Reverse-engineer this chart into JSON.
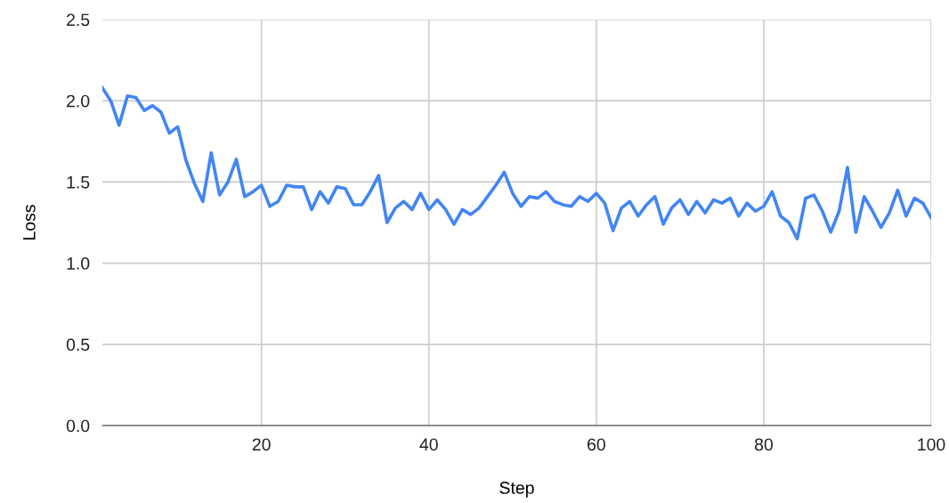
{
  "chart_data": {
    "type": "line",
    "xlabel": "Step",
    "ylabel": "Loss",
    "x": [
      1,
      2,
      3,
      4,
      5,
      6,
      7,
      8,
      9,
      10,
      11,
      12,
      13,
      14,
      15,
      16,
      17,
      18,
      19,
      20,
      21,
      22,
      23,
      24,
      25,
      26,
      27,
      28,
      29,
      30,
      31,
      32,
      33,
      34,
      35,
      36,
      37,
      38,
      39,
      40,
      41,
      42,
      43,
      44,
      45,
      46,
      47,
      48,
      49,
      50,
      51,
      52,
      53,
      54,
      55,
      56,
      57,
      58,
      59,
      60,
      61,
      62,
      63,
      64,
      65,
      66,
      67,
      68,
      69,
      70,
      71,
      72,
      73,
      74,
      75,
      76,
      77,
      78,
      79,
      80,
      81,
      82,
      83,
      84,
      85,
      86,
      87,
      88,
      89,
      90,
      91,
      92,
      93,
      94,
      95,
      96,
      97,
      98,
      99,
      100
    ],
    "series": [
      {
        "color": "#4285f4",
        "values": [
          2.08,
          2.0,
          1.85,
          2.03,
          2.02,
          1.94,
          1.97,
          1.93,
          1.8,
          1.84,
          1.63,
          1.49,
          1.38,
          1.68,
          1.42,
          1.5,
          1.64,
          1.41,
          1.44,
          1.48,
          1.35,
          1.38,
          1.48,
          1.47,
          1.47,
          1.33,
          1.44,
          1.37,
          1.47,
          1.46,
          1.36,
          1.36,
          1.44,
          1.54,
          1.25,
          1.34,
          1.38,
          1.33,
          1.43,
          1.33,
          1.39,
          1.33,
          1.24,
          1.33,
          1.3,
          1.34,
          1.41,
          1.48,
          1.56,
          1.43,
          1.35,
          1.41,
          1.4,
          1.44,
          1.38,
          1.36,
          1.35,
          1.41,
          1.38,
          1.43,
          1.37,
          1.2,
          1.34,
          1.38,
          1.29,
          1.36,
          1.41,
          1.24,
          1.34,
          1.39,
          1.3,
          1.38,
          1.31,
          1.39,
          1.37,
          1.4,
          1.29,
          1.37,
          1.32,
          1.35,
          1.44,
          1.29,
          1.25,
          1.15,
          1.4,
          1.42,
          1.32,
          1.19,
          1.32,
          1.59,
          1.19,
          1.41,
          1.32,
          1.22,
          1.31,
          1.45,
          1.29,
          1.4,
          1.37,
          1.28
        ]
      }
    ],
    "xlim": [
      1,
      100
    ],
    "xticks": [
      20,
      40,
      60,
      80,
      100
    ],
    "ylim": [
      0,
      2.5
    ],
    "yticks": [
      {
        "value": 0,
        "label": "0.0"
      },
      {
        "value": 0.5,
        "label": "0.5"
      },
      {
        "value": 1,
        "label": "1.0"
      },
      {
        "value": 1.5,
        "label": "1.5"
      },
      {
        "value": 2,
        "label": "2.0"
      },
      {
        "value": 2.5,
        "label": "2.5"
      }
    ],
    "grid": true,
    "marker": "none",
    "line_style": "solid"
  }
}
